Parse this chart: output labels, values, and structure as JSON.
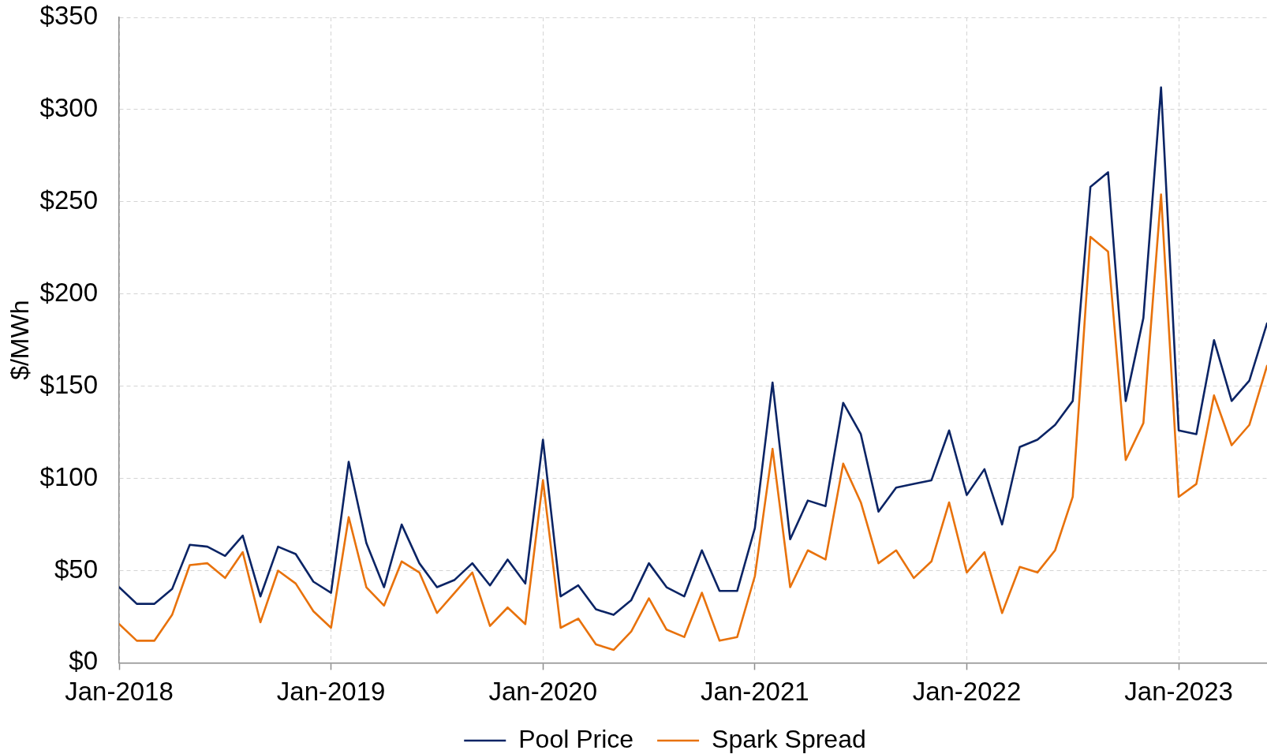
{
  "chart_data": {
    "type": "line",
    "ylabel": "$/MWh",
    "x": [
      "2018-01",
      "2018-02",
      "2018-03",
      "2018-04",
      "2018-05",
      "2018-06",
      "2018-07",
      "2018-08",
      "2018-09",
      "2018-10",
      "2018-11",
      "2018-12",
      "2019-01",
      "2019-02",
      "2019-03",
      "2019-04",
      "2019-05",
      "2019-06",
      "2019-07",
      "2019-08",
      "2019-09",
      "2019-10",
      "2019-11",
      "2019-12",
      "2020-01",
      "2020-02",
      "2020-03",
      "2020-04",
      "2020-05",
      "2020-06",
      "2020-07",
      "2020-08",
      "2020-09",
      "2020-10",
      "2020-11",
      "2020-12",
      "2021-01",
      "2021-02",
      "2021-03",
      "2021-04",
      "2021-05",
      "2021-06",
      "2021-07",
      "2021-08",
      "2021-09",
      "2021-10",
      "2021-11",
      "2021-12",
      "2022-01",
      "2022-02",
      "2022-03",
      "2022-04",
      "2022-05",
      "2022-06",
      "2022-07",
      "2022-08",
      "2022-09",
      "2022-10",
      "2022-11",
      "2022-12",
      "2023-01",
      "2023-02",
      "2023-03",
      "2023-04",
      "2023-05",
      "2023-06"
    ],
    "series": [
      {
        "name": "Pool Price",
        "color": "#0b2465",
        "values": [
          41,
          32,
          32,
          40,
          64,
          63,
          58,
          69,
          36,
          63,
          59,
          44,
          38,
          109,
          65,
          41,
          75,
          54,
          41,
          45,
          54,
          42,
          56,
          43,
          121,
          36,
          42,
          29,
          26,
          34,
          54,
          41,
          36,
          61,
          39,
          39,
          73,
          152,
          67,
          88,
          85,
          141,
          124,
          82,
          95,
          97,
          99,
          126,
          91,
          105,
          75,
          117,
          121,
          129,
          142,
          258,
          266,
          142,
          187,
          312,
          126,
          124,
          175,
          142,
          153,
          184
        ]
      },
      {
        "name": "Spark Spread",
        "color": "#e8720c",
        "values": [
          21,
          12,
          12,
          26,
          53,
          54,
          46,
          60,
          22,
          50,
          43,
          28,
          19,
          79,
          41,
          31,
          55,
          49,
          27,
          38,
          49,
          20,
          30,
          21,
          99,
          19,
          24,
          10,
          7,
          17,
          35,
          18,
          14,
          38,
          12,
          14,
          47,
          116,
          41,
          61,
          56,
          108,
          87,
          54,
          61,
          46,
          55,
          87,
          49,
          60,
          27,
          52,
          49,
          61,
          90,
          231,
          223,
          110,
          130,
          254,
          90,
          97,
          145,
          118,
          129,
          161
        ]
      }
    ],
    "xlim": [
      "2018-01",
      "2023-06"
    ],
    "xticks": [
      {
        "value": "2018-01",
        "label": "Jan-2018"
      },
      {
        "value": "2019-01",
        "label": "Jan-2019"
      },
      {
        "value": "2020-01",
        "label": "Jan-2020"
      },
      {
        "value": "2021-01",
        "label": "Jan-2021"
      },
      {
        "value": "2022-01",
        "label": "Jan-2022"
      },
      {
        "value": "2023-01",
        "label": "Jan-2023"
      }
    ],
    "ylim": [
      0,
      350
    ],
    "yticks": [
      {
        "value": 0,
        "label": "$0"
      },
      {
        "value": 50,
        "label": "$50"
      },
      {
        "value": 100,
        "label": "$100"
      },
      {
        "value": 150,
        "label": "$150"
      },
      {
        "value": 200,
        "label": "$200"
      },
      {
        "value": 250,
        "label": "$250"
      },
      {
        "value": 300,
        "label": "$300"
      },
      {
        "value": 350,
        "label": "$350"
      }
    ],
    "grid": true,
    "legend": "bottom",
    "marker": "none",
    "line_style": "solid"
  }
}
